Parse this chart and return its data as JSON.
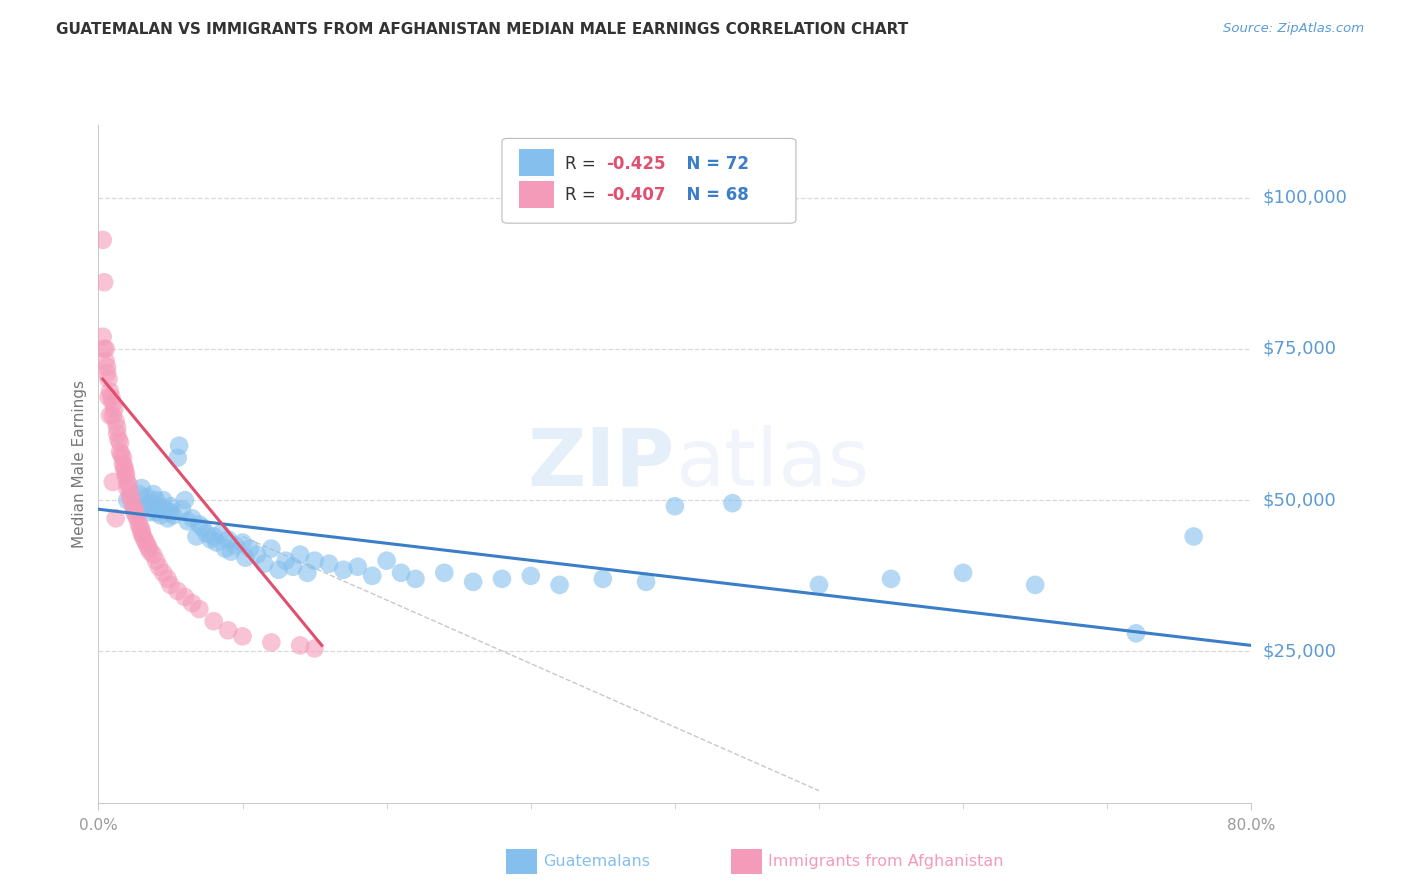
{
  "title": "GUATEMALAN VS IMMIGRANTS FROM AFGHANISTAN MEDIAN MALE EARNINGS CORRELATION CHART",
  "source": "Source: ZipAtlas.com",
  "ylabel": "Median Male Earnings",
  "ytick_labels": [
    "$25,000",
    "$50,000",
    "$75,000",
    "$100,000"
  ],
  "ytick_values": [
    25000,
    50000,
    75000,
    100000
  ],
  "legend_r1": "R = -0.425",
  "legend_n1": "N = 72",
  "legend_r2": "R = -0.407",
  "legend_n2": "N = 68",
  "legend_label1": "Guatemalans",
  "legend_label2": "Immigrants from Afghanistan",
  "watermark": "ZIPatlas",
  "blue_color": "#85bfed",
  "pink_color": "#f49bba",
  "blue_line_color": "#3a7ec8",
  "pink_line_color": "#e0506e",
  "gray_line_color": "#c8c8c8",
  "xmin": 0.0,
  "xmax": 0.8,
  "ymin": 0,
  "ymax": 112000,
  "blue_scatter_x": [
    0.02,
    0.025,
    0.028,
    0.03,
    0.03,
    0.032,
    0.034,
    0.035,
    0.036,
    0.038,
    0.04,
    0.04,
    0.042,
    0.043,
    0.045,
    0.046,
    0.048,
    0.05,
    0.05,
    0.052,
    0.055,
    0.056,
    0.058,
    0.06,
    0.062,
    0.065,
    0.068,
    0.07,
    0.072,
    0.075,
    0.078,
    0.08,
    0.082,
    0.085,
    0.088,
    0.09,
    0.092,
    0.095,
    0.1,
    0.102,
    0.105,
    0.11,
    0.115,
    0.12,
    0.125,
    0.13,
    0.135,
    0.14,
    0.145,
    0.15,
    0.16,
    0.17,
    0.18,
    0.19,
    0.2,
    0.21,
    0.22,
    0.24,
    0.26,
    0.28,
    0.3,
    0.32,
    0.35,
    0.38,
    0.4,
    0.44,
    0.5,
    0.55,
    0.6,
    0.65,
    0.72,
    0.76
  ],
  "blue_scatter_y": [
    50000,
    49000,
    51000,
    48500,
    52000,
    49000,
    50500,
    48000,
    49500,
    51000,
    50000,
    48000,
    49000,
    47500,
    50000,
    48500,
    47000,
    49000,
    48000,
    47500,
    57000,
    59000,
    48500,
    50000,
    46500,
    47000,
    44000,
    46000,
    45500,
    44500,
    43500,
    44000,
    43000,
    44500,
    42000,
    43500,
    41500,
    42500,
    43000,
    40500,
    42000,
    41000,
    39500,
    42000,
    38500,
    40000,
    39000,
    41000,
    38000,
    40000,
    39500,
    38500,
    39000,
    37500,
    40000,
    38000,
    37000,
    38000,
    36500,
    37000,
    37500,
    36000,
    37000,
    36500,
    49000,
    49500,
    36000,
    37000,
    38000,
    36000,
    28000,
    44000
  ],
  "pink_scatter_x": [
    0.003,
    0.004,
    0.005,
    0.006,
    0.007,
    0.008,
    0.009,
    0.01,
    0.01,
    0.011,
    0.012,
    0.013,
    0.013,
    0.014,
    0.015,
    0.015,
    0.016,
    0.017,
    0.017,
    0.018,
    0.018,
    0.019,
    0.019,
    0.02,
    0.02,
    0.021,
    0.022,
    0.022,
    0.023,
    0.024,
    0.025,
    0.025,
    0.026,
    0.027,
    0.028,
    0.029,
    0.03,
    0.03,
    0.031,
    0.032,
    0.033,
    0.034,
    0.035,
    0.036,
    0.038,
    0.04,
    0.042,
    0.045,
    0.048,
    0.05,
    0.055,
    0.06,
    0.065,
    0.07,
    0.08,
    0.09,
    0.1,
    0.12,
    0.14,
    0.15,
    0.003,
    0.004,
    0.005,
    0.006,
    0.007,
    0.008,
    0.01,
    0.012
  ],
  "pink_scatter_y": [
    93000,
    86000,
    75000,
    72000,
    70000,
    68000,
    67000,
    66000,
    64000,
    65000,
    63000,
    62000,
    61000,
    60000,
    59500,
    58000,
    57500,
    57000,
    56000,
    55500,
    55000,
    54500,
    54000,
    53000,
    52000,
    52500,
    51000,
    50500,
    50000,
    49000,
    48500,
    48000,
    47500,
    47000,
    46000,
    45500,
    45000,
    44500,
    44000,
    43500,
    43000,
    42500,
    42000,
    41500,
    41000,
    40000,
    39000,
    38000,
    37000,
    36000,
    35000,
    34000,
    33000,
    32000,
    30000,
    28500,
    27500,
    26500,
    26000,
    25500,
    77000,
    75000,
    73000,
    71000,
    67000,
    64000,
    53000,
    47000
  ],
  "blue_line_x": [
    0.0,
    0.8
  ],
  "blue_line_y": [
    48500,
    26000
  ],
  "pink_line_x": [
    0.003,
    0.155
  ],
  "pink_line_y": [
    70000,
    26000
  ],
  "gray_line_x": [
    0.1,
    0.5
  ],
  "gray_line_y": [
    44000,
    2000
  ],
  "title_color": "#333333",
  "source_color": "#5b9bd5",
  "axis_label_color": "#777777",
  "ytick_color": "#5b9bd5",
  "xtick_color": "#999999",
  "grid_color": "#d8d8e0",
  "background_color": "#ffffff"
}
